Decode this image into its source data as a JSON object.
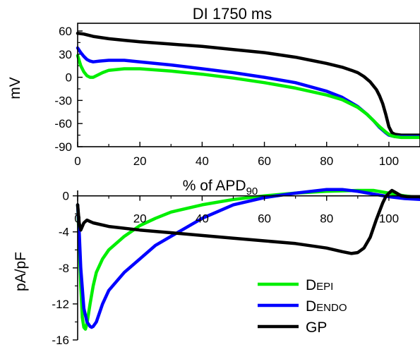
{
  "chart_data": [
    {
      "type": "line",
      "title": "DI 1750 ms",
      "xlabel": "% of APD",
      "xlabel_sub": "90",
      "ylabel": "mV",
      "xlim": [
        0,
        110
      ],
      "ylim": [
        -90,
        70
      ],
      "xticks": [
        "0",
        "20",
        "40",
        "60",
        "80",
        "100"
      ],
      "xtick_values": [
        0,
        20,
        40,
        60,
        80,
        100
      ],
      "yticks": [
        "60",
        "30",
        "0",
        "-30",
        "-60",
        "-90"
      ],
      "ytick_values": [
        60,
        30,
        0,
        -30,
        -60,
        -90
      ],
      "grid": false,
      "series": [
        {
          "key": "gp",
          "color": "#000000",
          "x": [
            0,
            2,
            5,
            10,
            15,
            20,
            30,
            40,
            50,
            60,
            70,
            75,
            80,
            85,
            88,
            90,
            92,
            94,
            96,
            97,
            98,
            99,
            100,
            101,
            102,
            104,
            106,
            110
          ],
          "y": [
            57,
            56,
            53,
            50,
            48,
            46,
            43,
            40,
            36,
            32,
            26,
            22,
            18,
            13,
            9,
            6,
            1,
            -6,
            -16,
            -24,
            -34,
            -48,
            -64,
            -72,
            -74,
            -75,
            -75,
            -75
          ]
        },
        {
          "key": "dendo",
          "color": "#0000ff",
          "x": [
            0,
            1,
            2,
            3,
            4,
            5,
            7,
            10,
            15,
            20,
            30,
            40,
            50,
            60,
            70,
            80,
            85,
            90,
            93,
            95,
            97,
            99,
            100,
            101,
            102,
            104,
            106,
            110
          ],
          "y": [
            38,
            32,
            27,
            23,
            21,
            20,
            21,
            22,
            22,
            20,
            16,
            11,
            6,
            0,
            -7,
            -18,
            -26,
            -38,
            -48,
            -56,
            -65,
            -72,
            -75,
            -76,
            -77,
            -77,
            -77,
            -77
          ]
        },
        {
          "key": "depi",
          "color": "#00ee00",
          "x": [
            0,
            1,
            2,
            3,
            4,
            5,
            6,
            8,
            10,
            15,
            20,
            30,
            40,
            50,
            60,
            70,
            80,
            85,
            90,
            93,
            95,
            97,
            99,
            100,
            101,
            102,
            104,
            106,
            110
          ],
          "y": [
            28,
            15,
            7,
            2,
            0,
            0,
            2,
            6,
            9,
            11,
            11,
            8,
            4,
            -1,
            -7,
            -14,
            -23,
            -29,
            -39,
            -48,
            -56,
            -64,
            -71,
            -74,
            -76,
            -77,
            -78,
            -78,
            -78
          ]
        }
      ]
    },
    {
      "type": "line",
      "title": "",
      "xlabel": "",
      "ylabel": "pA/pF",
      "xlim": [
        0,
        110
      ],
      "ylim": [
        -16,
        0.6
      ],
      "xticks": [
        "0",
        "20",
        "40",
        "60",
        "80",
        "100"
      ],
      "xtick_values": [
        0,
        20,
        40,
        60,
        80,
        100
      ],
      "yticks": [
        "0",
        "-4",
        "-8",
        "-12",
        "-16"
      ],
      "ytick_values": [
        0,
        -4,
        -8,
        -12,
        -16
      ],
      "grid": false,
      "legend_position": "bottom-right",
      "series": [
        {
          "key": "depi",
          "name_main": "D",
          "name_small": "EPI",
          "color": "#00ee00",
          "x": [
            0,
            0.5,
            1,
            1.5,
            2,
            2.5,
            3,
            4,
            5,
            6,
            8,
            10,
            15,
            20,
            25,
            30,
            40,
            50,
            60,
            70,
            80,
            90,
            95,
            100,
            105,
            110
          ],
          "y": [
            -1,
            -5,
            -10,
            -13.5,
            -14.6,
            -14.8,
            -14.2,
            -12,
            -10,
            -8.5,
            -7,
            -6,
            -4.5,
            -3.3,
            -2.5,
            -1.8,
            -1,
            -0.4,
            0,
            0.3,
            0.5,
            0.6,
            0.6,
            0.3,
            0,
            -0.2
          ]
        },
        {
          "key": "dendo",
          "name_main": "D",
          "name_small": "ENDO",
          "color": "#0000ff",
          "x": [
            0,
            0.5,
            1,
            2,
            3,
            4,
            4.5,
            5,
            6,
            8,
            10,
            15,
            20,
            25,
            30,
            40,
            50,
            60,
            70,
            80,
            85,
            90,
            95,
            100,
            105,
            110
          ],
          "y": [
            -1,
            -4,
            -8,
            -12.5,
            -14,
            -14.5,
            -14.6,
            -14.5,
            -14,
            -12,
            -10.5,
            -8.5,
            -7,
            -5.5,
            -4.5,
            -2.5,
            -1,
            -0.2,
            0.3,
            0.7,
            0.7,
            0.5,
            0.2,
            -0.1,
            -0.3,
            -0.4
          ]
        },
        {
          "key": "gp",
          "name_main": "GP",
          "name_small": "",
          "color": "#000000",
          "x": [
            0,
            0.5,
            1,
            2,
            3,
            5,
            10,
            20,
            30,
            40,
            50,
            60,
            70,
            80,
            85,
            88,
            90,
            92,
            94,
            96,
            98,
            99,
            100,
            101,
            102,
            104,
            106,
            110
          ],
          "y": [
            -1,
            -3,
            -3.8,
            -3,
            -2.7,
            -3,
            -3.4,
            -3.8,
            -4.1,
            -4.4,
            -4.7,
            -5,
            -5.3,
            -5.8,
            -6.2,
            -6.4,
            -6.3,
            -5.8,
            -4.6,
            -2.6,
            -0.8,
            -0.1,
            0.3,
            0.6,
            0.4,
            0,
            -0.1,
            -0.1
          ]
        }
      ]
    }
  ]
}
